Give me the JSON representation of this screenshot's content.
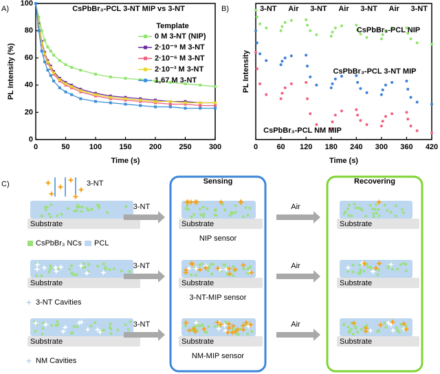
{
  "chart_data": [
    {
      "type": "line",
      "panel": "A)",
      "title": "CsPbBr₃-PCL 3-NT MIP vs 3-NT",
      "x_label": "Time (s)",
      "y_label": "PL Intensity (%)",
      "legend_title": "Template",
      "legend": "upper right",
      "x": [
        0,
        5,
        10,
        15,
        20,
        25,
        30,
        40,
        50,
        60,
        75,
        100,
        125,
        150,
        175,
        200,
        225,
        250,
        275,
        300
      ],
      "series": [
        {
          "name": "0 M 3-NT (NIP)",
          "color": "#8fe36c",
          "values": [
            100,
            90,
            80,
            73,
            68,
            65,
            62,
            58,
            55,
            53,
            51,
            48,
            46,
            45,
            44,
            43,
            42,
            41,
            40,
            39
          ]
        },
        {
          "name": "2·10⁻⁹ M 3-NT",
          "color": "#6a2a9c",
          "values": [
            100,
            85,
            72,
            64,
            58,
            54,
            50,
            45,
            42,
            40,
            37,
            34,
            32,
            31,
            30,
            29,
            28,
            28,
            27,
            27
          ]
        },
        {
          "name": "2·10⁻⁶ M 3-NT",
          "color": "#f0607e",
          "values": [
            100,
            83,
            70,
            62,
            56,
            52,
            48,
            43,
            40,
            38,
            35,
            32,
            30,
            29,
            28,
            27,
            26,
            26,
            25,
            25
          ]
        },
        {
          "name": "2·10⁻³ M 3-NT",
          "color": "#e6d62a",
          "values": [
            100,
            84,
            71,
            63,
            57,
            53,
            49,
            44,
            41,
            39,
            36,
            33,
            31,
            30,
            29,
            28,
            28,
            27,
            27,
            27
          ]
        },
        {
          "name": "1,67 M 3-NT",
          "color": "#3b8ed8",
          "values": [
            100,
            80,
            65,
            57,
            51,
            47,
            43,
            38,
            35,
            33,
            30,
            28,
            27,
            26,
            25,
            24,
            24,
            23,
            23,
            23
          ]
        }
      ],
      "xlim": [
        0,
        300
      ],
      "ylim": [
        0,
        100
      ],
      "xticks": [
        0,
        50,
        100,
        150,
        200,
        250,
        300
      ],
      "yticks": [
        0,
        20,
        40,
        60,
        80,
        100
      ],
      "grid": false
    },
    {
      "type": "scatter",
      "panel": "B)",
      "x_label": "Time (s)",
      "y_label": "PL Intensity",
      "phases": [
        "3-NT",
        "Air",
        "3-NT",
        "Air",
        "3-NT",
        "Air",
        "3-NT"
      ],
      "x": [
        0,
        3,
        10,
        25,
        60,
        63,
        70,
        85,
        120,
        123,
        130,
        145,
        180,
        183,
        190,
        205,
        240,
        243,
        250,
        265,
        300,
        303,
        310,
        325,
        360,
        363,
        370,
        385,
        420
      ],
      "series": [
        {
          "name": "CsPbBr₃-PCL NIP",
          "color": "#8fe36c",
          "values": [
            95,
            90,
            85,
            82,
            80,
            83,
            86,
            87.5,
            88,
            84,
            80,
            77,
            76,
            79,
            82,
            83.5,
            84,
            80.5,
            77.5,
            75,
            74,
            77,
            80,
            81.5,
            82,
            78,
            74,
            71,
            70
          ]
        },
        {
          "name": "CsPbBr₃-PCL 3-NT MIP",
          "color": "#3b7fd8",
          "values": [
            80,
            71,
            63,
            58,
            55,
            57.5,
            60,
            61.5,
            62,
            54,
            46,
            40,
            38,
            41,
            44.5,
            46.5,
            47,
            42,
            37.5,
            34.5,
            33,
            36.5,
            40,
            42,
            43,
            37,
            31,
            27.5,
            26
          ]
        },
        {
          "name": "CsPbBr₃-PCL NM MIP",
          "color": "#f0607e",
          "values": [
            64,
            52,
            41,
            33,
            30,
            34,
            38,
            41,
            42,
            30,
            19,
            11,
            8,
            13,
            18,
            21,
            22,
            18,
            14,
            11,
            10,
            13.5,
            17,
            19,
            20,
            15,
            10,
            6.5,
            5
          ]
        }
      ],
      "xlim": [
        0,
        420
      ],
      "ylim": [
        0,
        100
      ],
      "xticks": [
        0,
        60,
        120,
        180,
        240,
        300,
        360,
        420
      ],
      "grid": false
    }
  ],
  "diagram": {
    "panel": "C)",
    "incident_label": "3-NT",
    "columns": [
      "Sensing",
      "Recovering"
    ],
    "substrate": "Substrate",
    "rows": [
      {
        "legend": [
          "CsPbBr₃ NCs",
          "PCL"
        ],
        "arrow_in": "3-NT",
        "sensor": "NIP sensor",
        "arrow_out": "Air"
      },
      {
        "legend": [
          "3-NT Cavities"
        ],
        "arrow_in": "3-NT",
        "sensor": "3-NT-MIP sensor",
        "arrow_out": "Air"
      },
      {
        "legend": [
          "NM Cavities"
        ],
        "arrow_in": "3-NT",
        "sensor": "NM-MIP sensor",
        "arrow_out": "Air"
      }
    ]
  }
}
